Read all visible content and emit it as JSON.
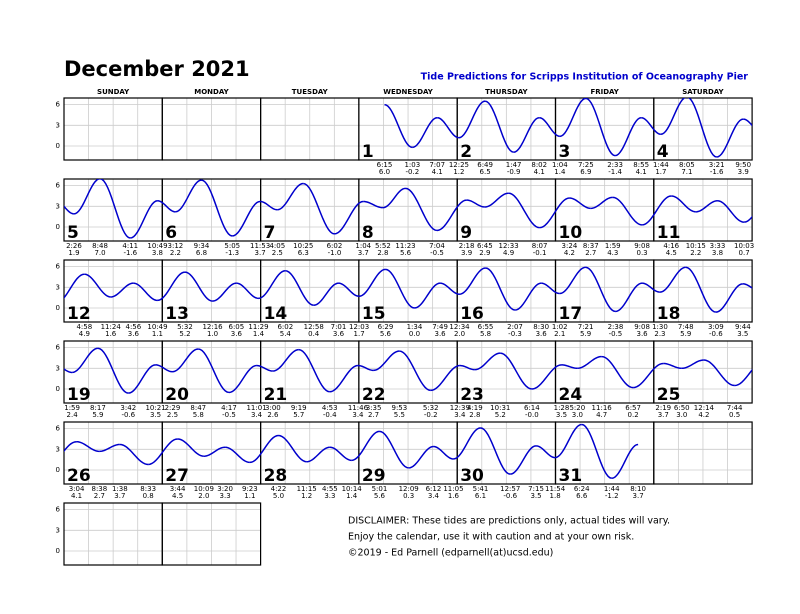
{
  "header": {
    "title": "December 2021",
    "subtitle": "Tide Predictions for Scripps Institution of Oceanography Pier"
  },
  "weekdays": [
    "SUNDAY",
    "MONDAY",
    "TUESDAY",
    "WEDNESDAY",
    "THURSDAY",
    "FRIDAY",
    "SATURDAY"
  ],
  "height_ticks": [
    6,
    3,
    0
  ],
  "days": [
    {
      "day": "1",
      "tides": [
        {
          "time": "6:15",
          "height": "6.0"
        },
        {
          "time": "1:03",
          "height": "-0.2"
        },
        {
          "time": "7:07",
          "height": "4.1"
        }
      ]
    },
    {
      "day": "2",
      "tides": [
        {
          "time": "12:25",
          "height": "1.2"
        },
        {
          "time": "6:49",
          "height": "6.5"
        },
        {
          "time": "1:47",
          "height": "-0.9"
        },
        {
          "time": "8:02",
          "height": "4.1"
        }
      ]
    },
    {
      "day": "3",
      "tides": [
        {
          "time": "1:04",
          "height": "1.4"
        },
        {
          "time": "7:25",
          "height": "6.9"
        },
        {
          "time": "2:33",
          "height": "-1.4"
        },
        {
          "time": "8:55",
          "height": "4.1"
        }
      ]
    },
    {
      "day": "4",
      "tides": [
        {
          "time": "1:44",
          "height": "1.7"
        },
        {
          "time": "8:05",
          "height": "7.1"
        },
        {
          "time": "3:21",
          "height": "-1.6"
        },
        {
          "time": "9:50",
          "height": "3.9"
        }
      ]
    },
    {
      "day": "5",
      "tides": [
        {
          "time": "2:26",
          "height": "1.9"
        },
        {
          "time": "8:48",
          "height": "7.0"
        },
        {
          "time": "4:11",
          "height": "-1.6"
        },
        {
          "time": "10:49",
          "height": "3.8"
        }
      ]
    },
    {
      "day": "6",
      "tides": [
        {
          "time": "3:12",
          "height": "2.2"
        },
        {
          "time": "9:34",
          "height": "6.8"
        },
        {
          "time": "5:05",
          "height": "-1.3"
        },
        {
          "time": "11:53",
          "height": "3.7"
        }
      ]
    },
    {
      "day": "7",
      "tides": [
        {
          "time": "4:05",
          "height": "2.5"
        },
        {
          "time": "10:25",
          "height": "6.3"
        },
        {
          "time": "6:02",
          "height": "-1.0"
        }
      ]
    },
    {
      "day": "8",
      "tides": [
        {
          "time": "1:04",
          "height": "3.7"
        },
        {
          "time": "5:52",
          "height": "2.8"
        },
        {
          "time": "11:23",
          "height": "5.6"
        },
        {
          "time": "7:04",
          "height": "-0.5"
        }
      ]
    },
    {
      "day": "9",
      "tides": [
        {
          "time": "2:18",
          "height": "3.9"
        },
        {
          "time": "6:45",
          "height": "2.9"
        },
        {
          "time": "12:33",
          "height": "4.9"
        },
        {
          "time": "8:07",
          "height": "-0.1"
        }
      ]
    },
    {
      "day": "10",
      "tides": [
        {
          "time": "3:24",
          "height": "4.2"
        },
        {
          "time": "8:37",
          "height": "2.7"
        },
        {
          "time": "1:59",
          "height": "4.3"
        },
        {
          "time": "9:08",
          "height": "0.3"
        }
      ]
    },
    {
      "day": "11",
      "tides": [
        {
          "time": "4:16",
          "height": "4.5"
        },
        {
          "time": "10:15",
          "height": "2.2"
        },
        {
          "time": "3:33",
          "height": "3.8"
        },
        {
          "time": "10:03",
          "height": "0.7"
        }
      ]
    },
    {
      "day": "12",
      "tides": [
        {
          "time": "4:58",
          "height": "4.9"
        },
        {
          "time": "11:24",
          "height": "1.6"
        },
        {
          "time": "4:56",
          "height": "3.6"
        },
        {
          "time": "10:49",
          "height": "1.1"
        }
      ]
    },
    {
      "day": "13",
      "tides": [
        {
          "time": "5:32",
          "height": "5.2"
        },
        {
          "time": "12:16",
          "height": "1.0"
        },
        {
          "time": "6:05",
          "height": "3.6"
        },
        {
          "time": "11:29",
          "height": "1.4"
        }
      ]
    },
    {
      "day": "14",
      "tides": [
        {
          "time": "6:02",
          "height": "5.4"
        },
        {
          "time": "12:58",
          "height": "0.4"
        },
        {
          "time": "7:01",
          "height": "3.6"
        }
      ]
    },
    {
      "day": "15",
      "tides": [
        {
          "time": "12:03",
          "height": "1.7"
        },
        {
          "time": "6:29",
          "height": "5.6"
        },
        {
          "time": "1:34",
          "height": "0.0"
        },
        {
          "time": "7:49",
          "height": "3.6"
        }
      ]
    },
    {
      "day": "16",
      "tides": [
        {
          "time": "12:34",
          "height": "2.0"
        },
        {
          "time": "6:55",
          "height": "5.8"
        },
        {
          "time": "2:07",
          "height": "-0.3"
        },
        {
          "time": "8:30",
          "height": "3.6"
        }
      ]
    },
    {
      "day": "17",
      "tides": [
        {
          "time": "1:02",
          "height": "2.1"
        },
        {
          "time": "7:21",
          "height": "5.9"
        },
        {
          "time": "2:38",
          "height": "-0.5"
        },
        {
          "time": "9:08",
          "height": "3.6"
        }
      ]
    },
    {
      "day": "18",
      "tides": [
        {
          "time": "1:30",
          "height": "2.3"
        },
        {
          "time": "7:48",
          "height": "5.9"
        },
        {
          "time": "3:09",
          "height": "-0.6"
        },
        {
          "time": "9:44",
          "height": "3.5"
        }
      ]
    },
    {
      "day": "19",
      "tides": [
        {
          "time": "1:59",
          "height": "2.4"
        },
        {
          "time": "8:17",
          "height": "5.9"
        },
        {
          "time": "3:42",
          "height": "-0.6"
        },
        {
          "time": "10:21",
          "height": "3.5"
        }
      ]
    },
    {
      "day": "20",
      "tides": [
        {
          "time": "2:29",
          "height": "2.5"
        },
        {
          "time": "8:47",
          "height": "5.8"
        },
        {
          "time": "4:17",
          "height": "-0.5"
        },
        {
          "time": "11:01",
          "height": "3.4"
        }
      ]
    },
    {
      "day": "21",
      "tides": [
        {
          "time": "3:00",
          "height": "2.6"
        },
        {
          "time": "9:19",
          "height": "5.7"
        },
        {
          "time": "4:53",
          "height": "-0.4"
        },
        {
          "time": "11:46",
          "height": "3.4"
        }
      ]
    },
    {
      "day": "22",
      "tides": [
        {
          "time": "3:35",
          "height": "2.7"
        },
        {
          "time": "9:53",
          "height": "5.5"
        },
        {
          "time": "5:32",
          "height": "-0.2"
        }
      ]
    },
    {
      "day": "23",
      "tides": [
        {
          "time": "12:39",
          "height": "3.4"
        },
        {
          "time": "4:19",
          "height": "2.8"
        },
        {
          "time": "10:31",
          "height": "5.2"
        },
        {
          "time": "6:14",
          "height": "-0.0"
        }
      ]
    },
    {
      "day": "24",
      "tides": [
        {
          "time": "1:28",
          "height": "3.5"
        },
        {
          "time": "5:20",
          "height": "3.0"
        },
        {
          "time": "11:16",
          "height": "4.7"
        },
        {
          "time": "6:57",
          "height": "0.2"
        }
      ]
    },
    {
      "day": "25",
      "tides": [
        {
          "time": "2:19",
          "height": "3.7"
        },
        {
          "time": "6:50",
          "height": "3.0"
        },
        {
          "time": "12:14",
          "height": "4.2"
        },
        {
          "time": "7:44",
          "height": "0.5"
        }
      ]
    },
    {
      "day": "26",
      "tides": [
        {
          "time": "3:04",
          "height": "4.1"
        },
        {
          "time": "8:38",
          "height": "2.7"
        },
        {
          "time": "1:38",
          "height": "3.7"
        },
        {
          "time": "8:33",
          "height": "0.8"
        }
      ]
    },
    {
      "day": "27",
      "tides": [
        {
          "time": "3:44",
          "height": "4.5"
        },
        {
          "time": "10:09",
          "height": "2.0"
        },
        {
          "time": "3:20",
          "height": "3.3"
        },
        {
          "time": "9:23",
          "height": "1.1"
        }
      ]
    },
    {
      "day": "28",
      "tides": [
        {
          "time": "4:22",
          "height": "5.0"
        },
        {
          "time": "11:15",
          "height": "1.2"
        },
        {
          "time": "4:55",
          "height": "3.3"
        },
        {
          "time": "10:14",
          "height": "1.4"
        }
      ]
    },
    {
      "day": "29",
      "tides": [
        {
          "time": "5:01",
          "height": "5.6"
        },
        {
          "time": "12:09",
          "height": "0.3"
        },
        {
          "time": "6:12",
          "height": "3.4"
        },
        {
          "time": "11:05",
          "height": "1.6"
        }
      ]
    },
    {
      "day": "30",
      "tides": [
        {
          "time": "5:41",
          "height": "6.1"
        },
        {
          "time": "12:57",
          "height": "-0.6"
        },
        {
          "time": "7:15",
          "height": "3.5"
        },
        {
          "time": "11:54",
          "height": "1.8"
        }
      ]
    },
    {
      "day": "31",
      "tides": [
        {
          "time": "6:24",
          "height": "6.6"
        },
        {
          "time": "1:44",
          "height": "-1.2"
        },
        {
          "time": "8:10",
          "height": "3.7"
        }
      ]
    }
  ],
  "disclaimer": [
    "DISCLAIMER: These tides are predictions only, actual tides will vary.",
    "Enjoy the calendar, use it with caution and at your own risk.",
    "©2019 - Ed Parnell (edparnell(at)ucsd.edu)"
  ]
}
